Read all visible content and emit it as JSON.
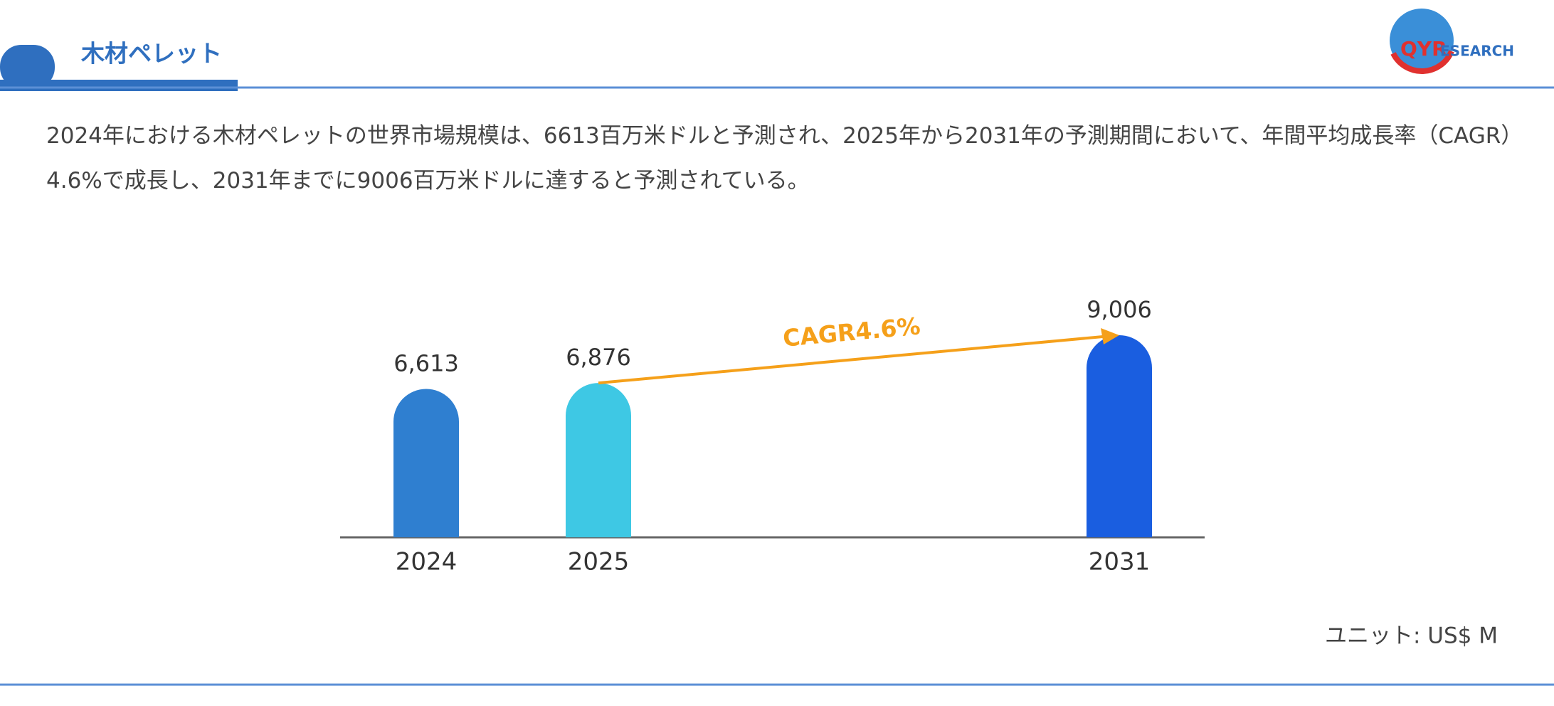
{
  "header": {
    "title": "木材ペレット",
    "logo": [
      "QYR",
      "ESEARCH"
    ]
  },
  "description": "2024年における木材ペレットの世界市場規模は、6613百万米ドルと予測され、2025年から2031年の予測期間において、年間平均成長率（CAGR）4.6%で成長し、2031年までに9006百万米ドルに達すると予測されている。",
  "chart_data": {
    "type": "bar",
    "categories": [
      "2024",
      "2025",
      "2031"
    ],
    "values": [
      6613,
      6876,
      9006
    ],
    "value_labels": [
      "6,613",
      "6,876",
      "9,006"
    ],
    "colors": [
      "#2f7fd0",
      "#3ec8e4",
      "#1a5ee0"
    ],
    "annotation": "CAGR4.6%",
    "annotation_color": "#f5a01a",
    "unit": "ユニット: US$ M"
  }
}
